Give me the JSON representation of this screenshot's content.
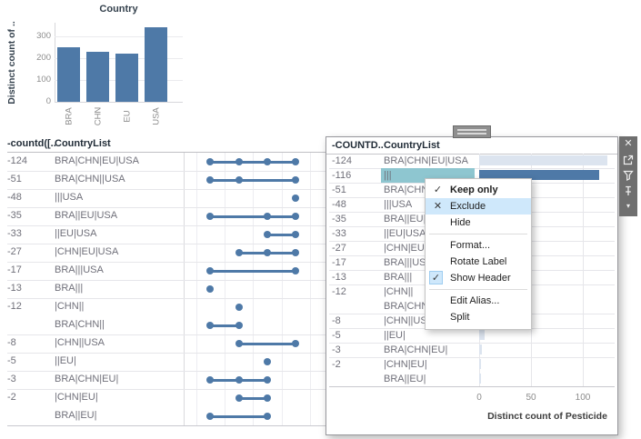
{
  "colors": {
    "steel_blue": "#4e79a7",
    "dim_bar": "#dce4ef",
    "selection_teal": "#8ec6d0",
    "menu_highlight": "#cfe8fb",
    "toolbar_gray": "#6f6f6f"
  },
  "top_chart": {
    "type": "bar",
    "title": "Country",
    "y_label": "Distinct count of ..",
    "categories": [
      "BRA",
      "CHN",
      "EU",
      "USA"
    ],
    "values": [
      250,
      227,
      218,
      341
    ],
    "y_ticks": [
      0,
      100,
      200,
      300
    ],
    "ylim": [
      0,
      360
    ]
  },
  "left_table": {
    "col1_header": "-countd([..",
    "col2_header": "CountryList",
    "rows": [
      {
        "count": "-124",
        "list": "BRA|CHN|EU|USA",
        "dots": [
          1,
          2,
          3,
          4
        ],
        "sep": true
      },
      {
        "count": "-51",
        "list": "BRA|CHN||USA",
        "dots": [
          1,
          2,
          4
        ],
        "sep": true
      },
      {
        "count": "-48",
        "list": "|||USA",
        "dots": [
          4
        ],
        "sep": true
      },
      {
        "count": "-35",
        "list": "BRA||EU|USA",
        "dots": [
          1,
          3,
          4
        ],
        "sep": true
      },
      {
        "count": "-33",
        "list": "||EU|USA",
        "dots": [
          3,
          4
        ],
        "sep": true
      },
      {
        "count": "-27",
        "list": "|CHN|EU|USA",
        "dots": [
          2,
          3,
          4
        ],
        "sep": true
      },
      {
        "count": "-17",
        "list": "BRA|||USA",
        "dots": [
          1,
          4
        ],
        "sep": true
      },
      {
        "count": "-13",
        "list": "BRA|||",
        "dots": [
          1
        ],
        "sep": true
      },
      {
        "count": "-12",
        "list": "|CHN||",
        "dots": [
          2
        ],
        "sep": false
      },
      {
        "count": "",
        "list": "BRA|CHN||",
        "dots": [
          1,
          2
        ],
        "sep": true
      },
      {
        "count": "-8",
        "list": "|CHN||USA",
        "dots": [
          2,
          4
        ],
        "sep": true
      },
      {
        "count": "-5",
        "list": "||EU|",
        "dots": [
          3
        ],
        "sep": true
      },
      {
        "count": "-3",
        "list": "BRA|CHN|EU|",
        "dots": [
          1,
          2,
          3
        ],
        "sep": true
      },
      {
        "count": "-2",
        "list": "|CHN|EU|",
        "dots": [
          2,
          3
        ],
        "sep": false
      },
      {
        "count": "",
        "list": "BRA||EU|",
        "dots": [
          1,
          3
        ],
        "sep": true
      }
    ]
  },
  "panel": {
    "col1_header": "-COUNTD..",
    "col2_header": "CountryList",
    "axis": {
      "ticks": [
        0,
        50,
        100
      ],
      "label": "Distinct count of Pesticide"
    },
    "rows": [
      {
        "count": "-124",
        "list": "BRA|CHN|EU|USA",
        "value": 124,
        "selected": false,
        "sep": true
      },
      {
        "count": "-116",
        "list": "|||",
        "value": 116,
        "selected": true,
        "sep": true
      },
      {
        "count": "-51",
        "list": "BRA|CHN||USA",
        "value": 51,
        "selected": false,
        "sep": true
      },
      {
        "count": "-48",
        "list": "|||USA",
        "value": 48,
        "selected": false,
        "sep": true
      },
      {
        "count": "-35",
        "list": "BRA||EU|USA",
        "value": 35,
        "selected": false,
        "sep": true
      },
      {
        "count": "-33",
        "list": "||EU|USA",
        "value": 33,
        "selected": false,
        "sep": true
      },
      {
        "count": "-27",
        "list": "|CHN|EU|USA",
        "value": 27,
        "selected": false,
        "sep": true
      },
      {
        "count": "-17",
        "list": "BRA|||USA",
        "value": 17,
        "selected": false,
        "sep": true
      },
      {
        "count": "-13",
        "list": "BRA|||",
        "value": 13,
        "selected": false,
        "sep": true
      },
      {
        "count": "-12",
        "list": "|CHN||",
        "value": 12,
        "selected": false,
        "sep": false
      },
      {
        "count": "",
        "list": "BRA|CHN||",
        "value": 12,
        "selected": false,
        "sep": true
      },
      {
        "count": "-8",
        "list": "|CHN||USA",
        "value": 8,
        "selected": false,
        "sep": true
      },
      {
        "count": "-5",
        "list": "||EU|",
        "value": 5,
        "selected": false,
        "sep": true
      },
      {
        "count": "-3",
        "list": "BRA|CHN|EU|",
        "value": 3,
        "selected": false,
        "sep": true
      },
      {
        "count": "-2",
        "list": "|CHN|EU|",
        "value": 2,
        "selected": false,
        "sep": false
      },
      {
        "count": "",
        "list": "BRA||EU|",
        "value": 2,
        "selected": false,
        "sep": true
      }
    ]
  },
  "menu": {
    "items": [
      {
        "label": "Keep only",
        "icon": "check",
        "bold": true
      },
      {
        "label": "Exclude",
        "icon": "x",
        "highlight": true
      },
      {
        "label": "Hide"
      },
      {
        "separator": true
      },
      {
        "label": "Format..."
      },
      {
        "label": "Rotate Label"
      },
      {
        "label": "Show Header",
        "icon": "check-boxed"
      },
      {
        "separator": true
      },
      {
        "label": "Edit Alias..."
      },
      {
        "label": "Split"
      }
    ]
  },
  "toolbar": {
    "icons": [
      "close",
      "export",
      "filter",
      "pin",
      "caret-down"
    ]
  }
}
